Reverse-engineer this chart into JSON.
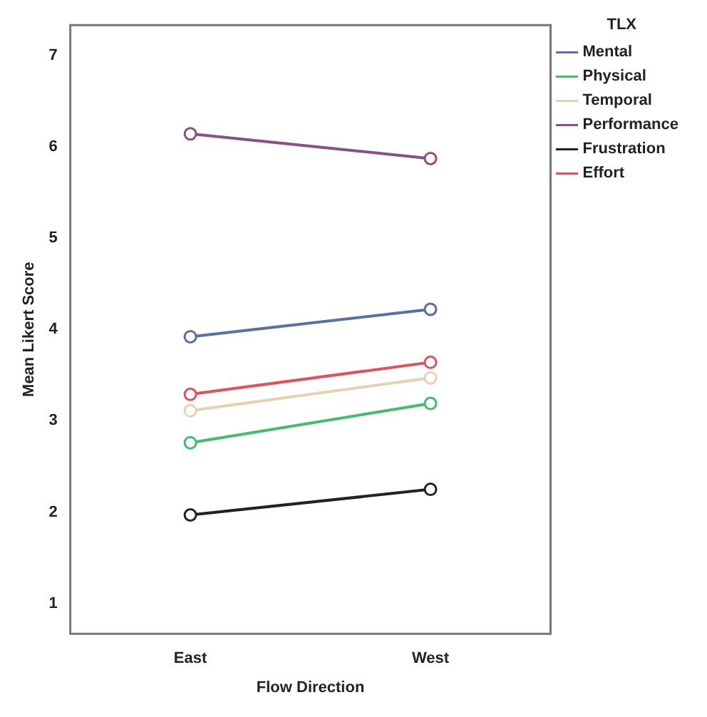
{
  "chart_data": {
    "type": "line",
    "xlabel": "Flow Direction",
    "ylabel": "Mean Likert Score",
    "legend_title": "TLX",
    "categories": [
      "East",
      "West"
    ],
    "series": [
      {
        "name": "Mental",
        "color": "#5a6fa8",
        "values": [
          3.92,
          4.22
        ]
      },
      {
        "name": "Physical",
        "color": "#3fbf6a",
        "values": [
          2.76,
          3.19
        ]
      },
      {
        "name": "Temporal",
        "color": "#e5d3b0",
        "values": [
          3.11,
          3.47
        ]
      },
      {
        "name": "Performance",
        "color": "#8a4f86",
        "values": [
          6.14,
          5.87
        ]
      },
      {
        "name": "Frustration",
        "color": "#222222",
        "values": [
          1.97,
          2.25
        ]
      },
      {
        "name": "Effort",
        "color": "#e0505f",
        "values": [
          3.29,
          3.64
        ]
      }
    ],
    "ylim": [
      0.67,
      7.33
    ],
    "yticks": [
      1,
      2,
      3,
      4,
      5,
      6,
      7
    ],
    "grid": false,
    "legend": "right",
    "marker": "circle",
    "line_style": "solid"
  }
}
